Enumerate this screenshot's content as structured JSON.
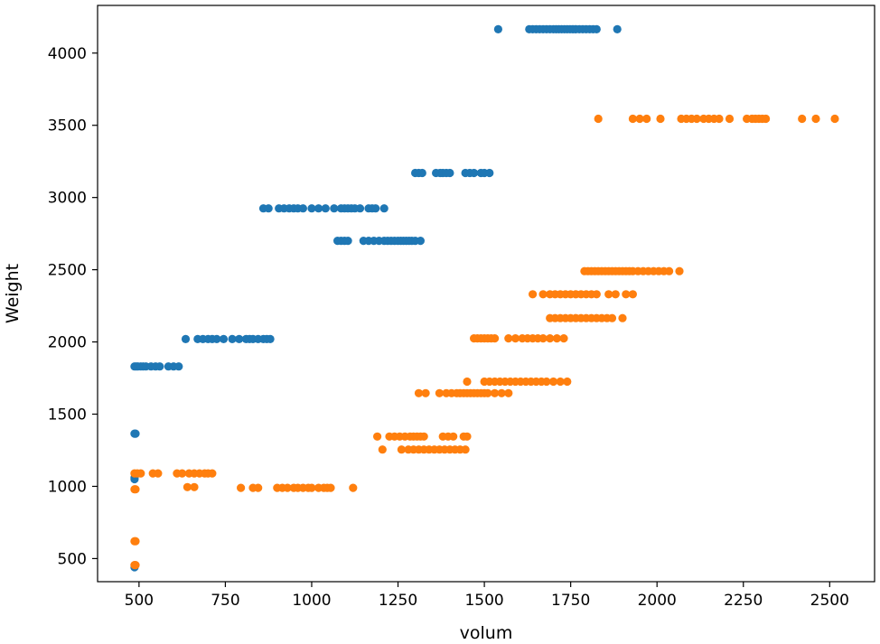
{
  "chart_data": {
    "type": "scatter",
    "title": "",
    "xlabel": "volum",
    "ylabel": "Weight",
    "xlim": [
      380,
      2630
    ],
    "ylim": [
      340,
      4330
    ],
    "xticks": [
      500,
      750,
      1000,
      1250,
      1500,
      1750,
      2000,
      2250,
      2500
    ],
    "yticks": [
      500,
      1000,
      1500,
      2000,
      2500,
      3000,
      3500,
      4000
    ],
    "grid": false,
    "legend": "none",
    "series": [
      {
        "color": "#1f77b4",
        "points": [
          [
            487,
            1830
          ],
          [
            492,
            1830
          ],
          [
            497,
            1830
          ],
          [
            505,
            1830
          ],
          [
            512,
            1830
          ],
          [
            520,
            1830
          ],
          [
            535,
            1830
          ],
          [
            548,
            1830
          ],
          [
            560,
            1830
          ],
          [
            585,
            1830
          ],
          [
            600,
            1830
          ],
          [
            615,
            1830
          ],
          [
            487,
            1365
          ],
          [
            490,
            1365
          ],
          [
            487,
            1060
          ],
          [
            487,
            1050
          ],
          [
            487,
            440
          ],
          [
            635,
            2020
          ],
          [
            670,
            2020
          ],
          [
            685,
            2020
          ],
          [
            700,
            2020
          ],
          [
            712,
            2020
          ],
          [
            725,
            2020
          ],
          [
            745,
            2020
          ],
          [
            770,
            2020
          ],
          [
            790,
            2020
          ],
          [
            810,
            2020
          ],
          [
            820,
            2020
          ],
          [
            830,
            2020
          ],
          [
            845,
            2020
          ],
          [
            860,
            2020
          ],
          [
            870,
            2020
          ],
          [
            880,
            2020
          ],
          [
            860,
            2925
          ],
          [
            875,
            2925
          ],
          [
            905,
            2925
          ],
          [
            920,
            2925
          ],
          [
            935,
            2925
          ],
          [
            948,
            2925
          ],
          [
            960,
            2925
          ],
          [
            975,
            2925
          ],
          [
            1000,
            2925
          ],
          [
            1020,
            2925
          ],
          [
            1040,
            2925
          ],
          [
            1065,
            2925
          ],
          [
            1085,
            2925
          ],
          [
            1095,
            2925
          ],
          [
            1105,
            2925
          ],
          [
            1115,
            2925
          ],
          [
            1125,
            2925
          ],
          [
            1140,
            2925
          ],
          [
            1165,
            2925
          ],
          [
            1175,
            2925
          ],
          [
            1185,
            2925
          ],
          [
            1210,
            2925
          ],
          [
            1075,
            2700
          ],
          [
            1085,
            2700
          ],
          [
            1095,
            2700
          ],
          [
            1105,
            2700
          ],
          [
            1150,
            2700
          ],
          [
            1165,
            2700
          ],
          [
            1180,
            2700
          ],
          [
            1195,
            2700
          ],
          [
            1210,
            2700
          ],
          [
            1220,
            2700
          ],
          [
            1230,
            2700
          ],
          [
            1240,
            2700
          ],
          [
            1250,
            2700
          ],
          [
            1258,
            2700
          ],
          [
            1266,
            2700
          ],
          [
            1274,
            2700
          ],
          [
            1282,
            2700
          ],
          [
            1290,
            2700
          ],
          [
            1300,
            2700
          ],
          [
            1315,
            2700
          ],
          [
            1300,
            3170
          ],
          [
            1310,
            3170
          ],
          [
            1320,
            3170
          ],
          [
            1360,
            3170
          ],
          [
            1372,
            3170
          ],
          [
            1380,
            3170
          ],
          [
            1390,
            3170
          ],
          [
            1400,
            3170
          ],
          [
            1445,
            3170
          ],
          [
            1458,
            3170
          ],
          [
            1470,
            3170
          ],
          [
            1490,
            3170
          ],
          [
            1500,
            3170
          ],
          [
            1515,
            3170
          ],
          [
            1540,
            4165
          ],
          [
            1630,
            4165
          ],
          [
            1640,
            4165
          ],
          [
            1650,
            4165
          ],
          [
            1660,
            4165
          ],
          [
            1670,
            4165
          ],
          [
            1680,
            4165
          ],
          [
            1690,
            4165
          ],
          [
            1700,
            4165
          ],
          [
            1708,
            4165
          ],
          [
            1716,
            4165
          ],
          [
            1724,
            4165
          ],
          [
            1732,
            4165
          ],
          [
            1740,
            4165
          ],
          [
            1748,
            4165
          ],
          [
            1756,
            4165
          ],
          [
            1765,
            4165
          ],
          [
            1775,
            4165
          ],
          [
            1785,
            4165
          ],
          [
            1795,
            4165
          ],
          [
            1805,
            4165
          ],
          [
            1815,
            4165
          ],
          [
            1825,
            4165
          ],
          [
            1885,
            4165
          ]
        ]
      },
      {
        "color": "#ff7f0e",
        "points": [
          [
            487,
            1090
          ],
          [
            495,
            1090
          ],
          [
            505,
            1090
          ],
          [
            540,
            1090
          ],
          [
            555,
            1090
          ],
          [
            610,
            1090
          ],
          [
            625,
            1090
          ],
          [
            645,
            1090
          ],
          [
            660,
            1090
          ],
          [
            675,
            1090
          ],
          [
            690,
            1090
          ],
          [
            700,
            1090
          ],
          [
            712,
            1090
          ],
          [
            487,
            980
          ],
          [
            490,
            980
          ],
          [
            487,
            620
          ],
          [
            490,
            620
          ],
          [
            487,
            455
          ],
          [
            490,
            455
          ],
          [
            640,
            995
          ],
          [
            660,
            995
          ],
          [
            795,
            990
          ],
          [
            830,
            990
          ],
          [
            845,
            990
          ],
          [
            900,
            990
          ],
          [
            915,
            990
          ],
          [
            930,
            990
          ],
          [
            948,
            990
          ],
          [
            960,
            990
          ],
          [
            975,
            990
          ],
          [
            990,
            990
          ],
          [
            1000,
            990
          ],
          [
            1020,
            990
          ],
          [
            1035,
            990
          ],
          [
            1045,
            990
          ],
          [
            1055,
            990
          ],
          [
            1120,
            990
          ],
          [
            1190,
            1345
          ],
          [
            1225,
            1345
          ],
          [
            1240,
            1345
          ],
          [
            1255,
            1345
          ],
          [
            1270,
            1345
          ],
          [
            1285,
            1345
          ],
          [
            1295,
            1345
          ],
          [
            1305,
            1345
          ],
          [
            1315,
            1345
          ],
          [
            1325,
            1345
          ],
          [
            1380,
            1345
          ],
          [
            1395,
            1345
          ],
          [
            1410,
            1345
          ],
          [
            1440,
            1345
          ],
          [
            1450,
            1345
          ],
          [
            1205,
            1255
          ],
          [
            1260,
            1255
          ],
          [
            1280,
            1255
          ],
          [
            1295,
            1255
          ],
          [
            1310,
            1255
          ],
          [
            1325,
            1255
          ],
          [
            1340,
            1255
          ],
          [
            1355,
            1255
          ],
          [
            1370,
            1255
          ],
          [
            1385,
            1255
          ],
          [
            1400,
            1255
          ],
          [
            1415,
            1255
          ],
          [
            1430,
            1255
          ],
          [
            1445,
            1255
          ],
          [
            1310,
            1645
          ],
          [
            1330,
            1645
          ],
          [
            1370,
            1645
          ],
          [
            1390,
            1645
          ],
          [
            1405,
            1645
          ],
          [
            1420,
            1645
          ],
          [
            1430,
            1645
          ],
          [
            1440,
            1645
          ],
          [
            1450,
            1645
          ],
          [
            1460,
            1645
          ],
          [
            1470,
            1645
          ],
          [
            1480,
            1645
          ],
          [
            1490,
            1645
          ],
          [
            1500,
            1645
          ],
          [
            1510,
            1645
          ],
          [
            1530,
            1645
          ],
          [
            1550,
            1645
          ],
          [
            1570,
            1645
          ],
          [
            1450,
            1725
          ],
          [
            1500,
            1725
          ],
          [
            1515,
            1725
          ],
          [
            1530,
            1725
          ],
          [
            1545,
            1725
          ],
          [
            1560,
            1725
          ],
          [
            1575,
            1725
          ],
          [
            1590,
            1725
          ],
          [
            1605,
            1725
          ],
          [
            1620,
            1725
          ],
          [
            1635,
            1725
          ],
          [
            1650,
            1725
          ],
          [
            1665,
            1725
          ],
          [
            1680,
            1725
          ],
          [
            1700,
            1725
          ],
          [
            1720,
            1725
          ],
          [
            1740,
            1725
          ],
          [
            1470,
            2025
          ],
          [
            1480,
            2025
          ],
          [
            1490,
            2025
          ],
          [
            1500,
            2025
          ],
          [
            1510,
            2025
          ],
          [
            1520,
            2025
          ],
          [
            1530,
            2025
          ],
          [
            1570,
            2025
          ],
          [
            1590,
            2025
          ],
          [
            1610,
            2025
          ],
          [
            1625,
            2025
          ],
          [
            1640,
            2025
          ],
          [
            1655,
            2025
          ],
          [
            1670,
            2025
          ],
          [
            1690,
            2025
          ],
          [
            1710,
            2025
          ],
          [
            1730,
            2025
          ],
          [
            1640,
            2330
          ],
          [
            1670,
            2330
          ],
          [
            1690,
            2330
          ],
          [
            1705,
            2330
          ],
          [
            1720,
            2330
          ],
          [
            1735,
            2330
          ],
          [
            1750,
            2330
          ],
          [
            1765,
            2330
          ],
          [
            1780,
            2330
          ],
          [
            1795,
            2330
          ],
          [
            1810,
            2330
          ],
          [
            1825,
            2330
          ],
          [
            1860,
            2330
          ],
          [
            1880,
            2330
          ],
          [
            1910,
            2330
          ],
          [
            1930,
            2330
          ],
          [
            1690,
            2165
          ],
          [
            1705,
            2165
          ],
          [
            1720,
            2165
          ],
          [
            1735,
            2165
          ],
          [
            1750,
            2165
          ],
          [
            1765,
            2165
          ],
          [
            1780,
            2165
          ],
          [
            1795,
            2165
          ],
          [
            1810,
            2165
          ],
          [
            1825,
            2165
          ],
          [
            1840,
            2165
          ],
          [
            1855,
            2165
          ],
          [
            1870,
            2165
          ],
          [
            1900,
            2165
          ],
          [
            1790,
            2490
          ],
          [
            1800,
            2490
          ],
          [
            1810,
            2490
          ],
          [
            1820,
            2490
          ],
          [
            1830,
            2490
          ],
          [
            1840,
            2490
          ],
          [
            1850,
            2490
          ],
          [
            1860,
            2490
          ],
          [
            1870,
            2490
          ],
          [
            1880,
            2490
          ],
          [
            1890,
            2490
          ],
          [
            1900,
            2490
          ],
          [
            1910,
            2490
          ],
          [
            1920,
            2490
          ],
          [
            1930,
            2490
          ],
          [
            1945,
            2490
          ],
          [
            1960,
            2490
          ],
          [
            1975,
            2490
          ],
          [
            1990,
            2490
          ],
          [
            2005,
            2490
          ],
          [
            2020,
            2490
          ],
          [
            2035,
            2490
          ],
          [
            2065,
            2490
          ],
          [
            1830,
            3545
          ],
          [
            1930,
            3545
          ],
          [
            1950,
            3545
          ],
          [
            1970,
            3545
          ],
          [
            2010,
            3545
          ],
          [
            2070,
            3545
          ],
          [
            2085,
            3545
          ],
          [
            2100,
            3545
          ],
          [
            2115,
            3545
          ],
          [
            2135,
            3545
          ],
          [
            2150,
            3545
          ],
          [
            2165,
            3545
          ],
          [
            2180,
            3545
          ],
          [
            2210,
            3545
          ],
          [
            2260,
            3545
          ],
          [
            2275,
            3545
          ],
          [
            2285,
            3545
          ],
          [
            2295,
            3545
          ],
          [
            2305,
            3545
          ],
          [
            2315,
            3545
          ],
          [
            2420,
            3545
          ],
          [
            2460,
            3545
          ],
          [
            2515,
            3545
          ]
        ]
      }
    ]
  }
}
